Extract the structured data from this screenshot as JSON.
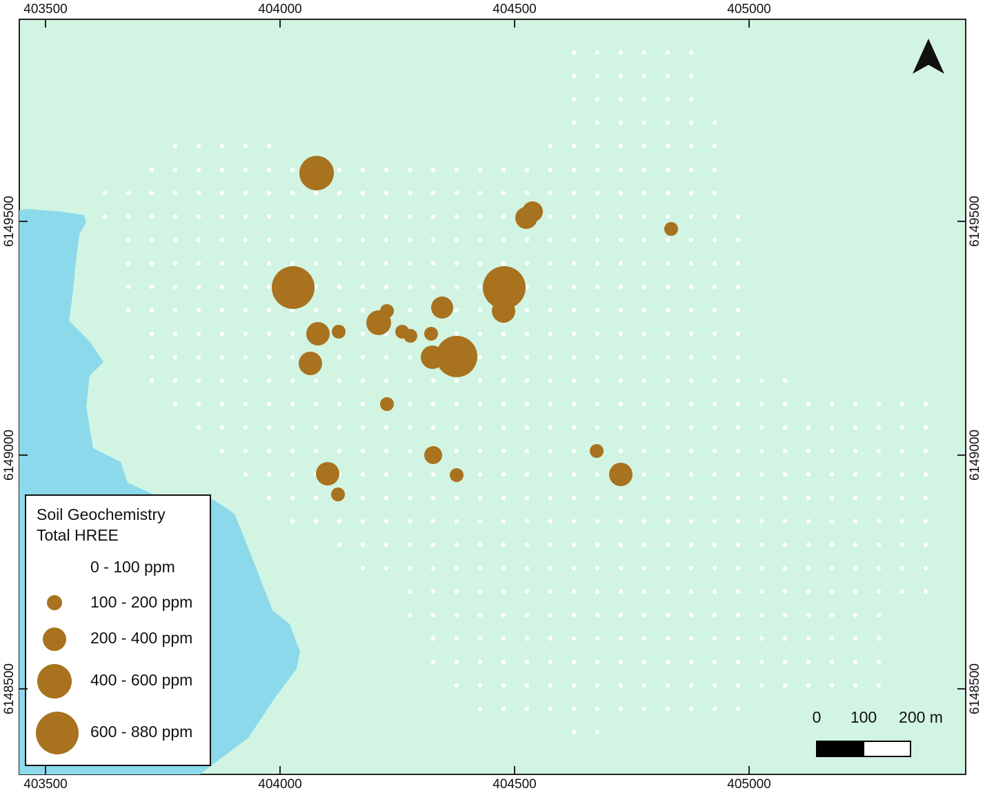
{
  "map": {
    "xticks": [
      403500,
      404000,
      404500,
      405000
    ],
    "yticks": [
      6149500,
      6149000,
      6148500
    ],
    "legend": {
      "title": [
        "Soil Geochemistry",
        "Total HREE"
      ],
      "classes": [
        "0 - 100 ppm",
        "100 - 200 ppm",
        "200 - 400 ppm",
        "400 - 600 ppm",
        "600 - 880 ppm"
      ]
    },
    "scale_bar": [
      "0",
      "100",
      "200 m"
    ]
  }
}
